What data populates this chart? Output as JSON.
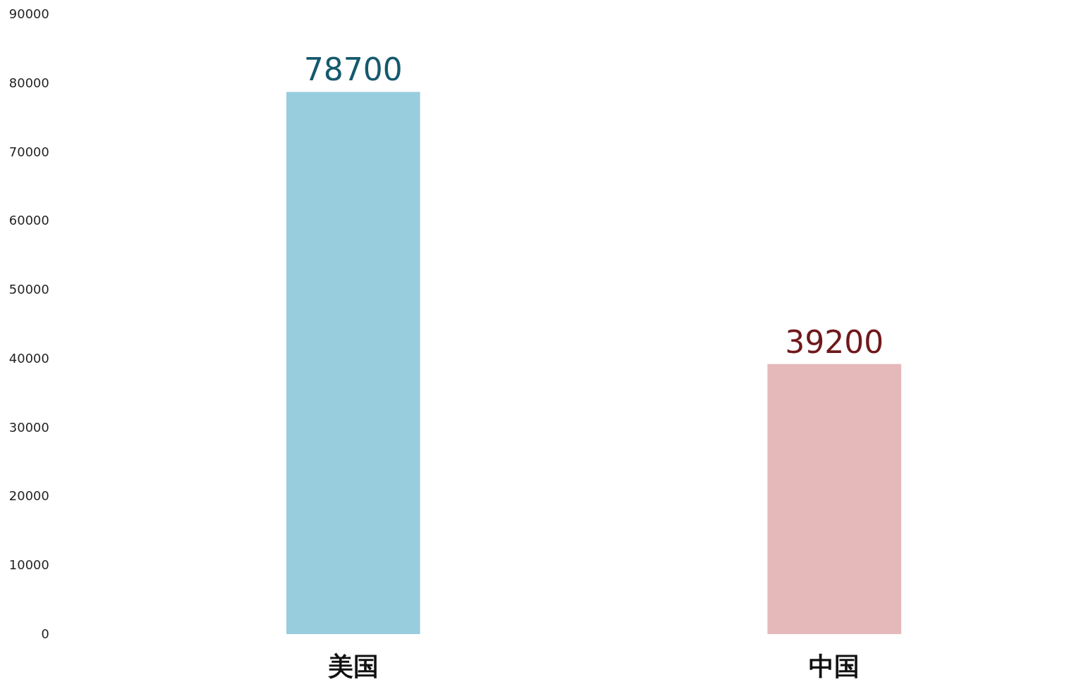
{
  "chart_data": {
    "type": "bar",
    "categories": [
      "美国",
      "中国"
    ],
    "values": [
      78700,
      39200
    ],
    "colors": [
      "#97cddd",
      "#e5b8b9"
    ],
    "ylim": [
      0,
      90000
    ],
    "yticks": [
      0,
      10000,
      20000,
      30000,
      40000,
      50000,
      60000,
      70000,
      80000,
      90000
    ],
    "data_labels": true
  }
}
